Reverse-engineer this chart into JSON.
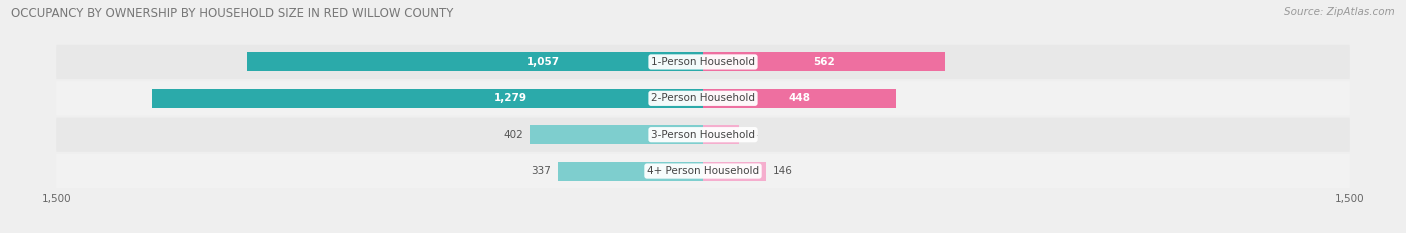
{
  "title": "OCCUPANCY BY OWNERSHIP BY HOUSEHOLD SIZE IN RED WILLOW COUNTY",
  "source": "Source: ZipAtlas.com",
  "categories": [
    "1-Person Household",
    "2-Person Household",
    "3-Person Household",
    "4+ Person Household"
  ],
  "owner_values": [
    1057,
    1279,
    402,
    337
  ],
  "renter_values": [
    562,
    448,
    84,
    146
  ],
  "owner_color_dark": "#2BAAAA",
  "owner_color_light": "#7ECECE",
  "renter_color_dark": "#EE6FA0",
  "renter_color_light": "#F5AECE",
  "axis_max": 1500,
  "bg_color": "#EFEFEF",
  "row_bg_even": "#E8E8E8",
  "row_bg_odd": "#F2F2F2",
  "title_fontsize": 8.5,
  "source_fontsize": 7.5,
  "bar_label_fontsize": 7.5,
  "category_fontsize": 7.5,
  "legend_fontsize": 7.5,
  "axis_label_fontsize": 7.5,
  "owner_threshold": 500,
  "renter_threshold": 300
}
